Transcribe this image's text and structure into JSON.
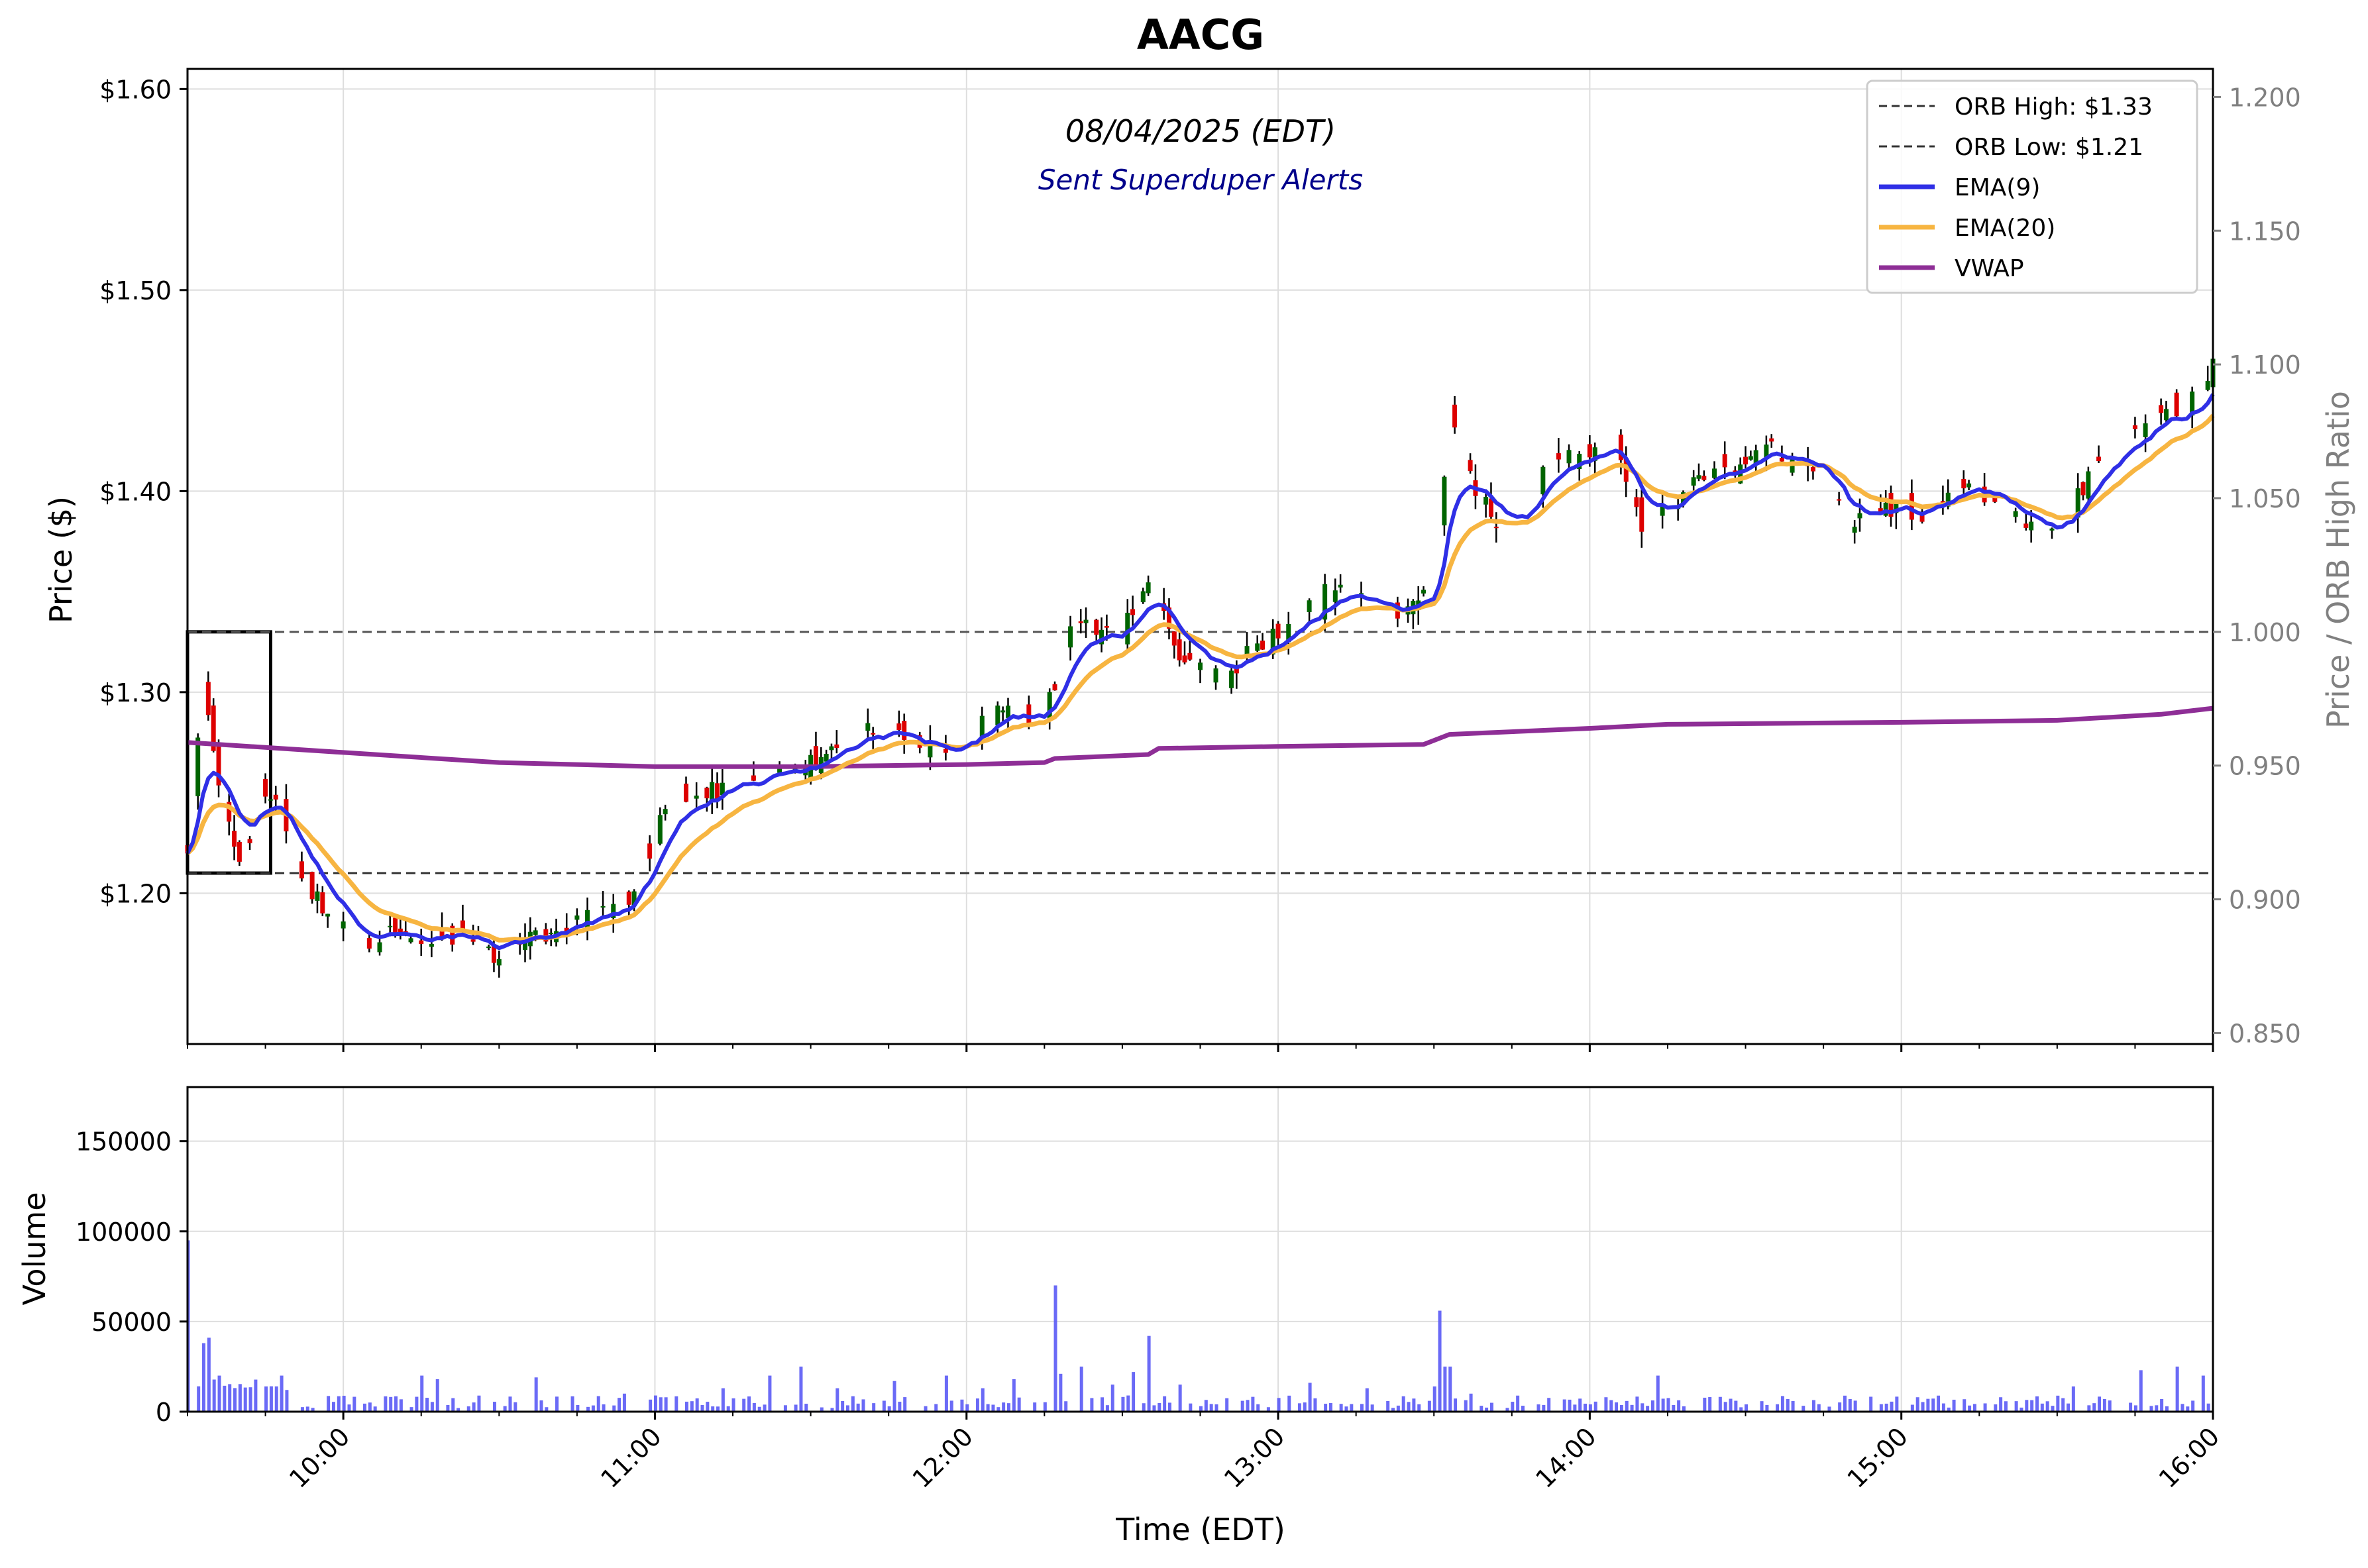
{
  "chart_data": {
    "type": "candlestick",
    "title": "AACG",
    "date_label": "08/04/2025 (EDT)",
    "alerts_label": "Sent Superduper Alerts",
    "xlabel": "Time (EDT)",
    "ylabel_price": "Price ($)",
    "ylabel_ratio": "Price / ORB High Ratio",
    "ylabel_volume": "Volume",
    "x_range": [
      "09:30",
      "16:00"
    ],
    "price_ylim": [
      1.125,
      1.61
    ],
    "ratio_ylim": [
      0.8459,
      1.2105
    ],
    "volume_ylim": [
      0,
      180000
    ],
    "grid": true,
    "legend_placement": "top-right",
    "x_ticks": [
      "10:00",
      "11:00",
      "12:00",
      "13:00",
      "14:00",
      "15:00",
      "16:00"
    ],
    "price_ticks": [
      "$1.20",
      "$1.30",
      "$1.40",
      "$1.50",
      "$1.60"
    ],
    "ratio_ticks": [
      "0.850",
      "0.900",
      "0.950",
      "1.000",
      "1.050",
      "1.100",
      "1.150",
      "1.200"
    ],
    "volume_ticks": [
      "0",
      "50000",
      "100000",
      "150000"
    ],
    "orb_high": 1.33,
    "orb_low": 1.21,
    "orb_window": [
      "09:30",
      "09:46"
    ],
    "legend": [
      {
        "label": "ORB High: $1.33",
        "color": "#333333",
        "style": "dashed"
      },
      {
        "label": "ORB Low: $1.21",
        "color": "#333333",
        "style": "dashed"
      },
      {
        "label": "EMA(9)",
        "color": "#2f2fe6",
        "style": "solid"
      },
      {
        "label": "EMA(20)",
        "color": "#f7b541",
        "style": "solid"
      },
      {
        "label": "VWAP",
        "color": "#8e2e96",
        "style": "solid"
      }
    ],
    "colors": {
      "up": "#006400",
      "down": "#dd0000",
      "volume": "#5a5af5",
      "ema9": "#2f2fe6",
      "ema20": "#f7b541",
      "vwap": "#8e2e96"
    },
    "price_path": [
      [
        "09:30",
        1.22
      ],
      [
        "09:33",
        1.3
      ],
      [
        "09:36",
        1.25
      ],
      [
        "09:40",
        1.21
      ],
      [
        "09:44",
        1.25
      ],
      [
        "09:48",
        1.24
      ],
      [
        "09:52",
        1.21
      ],
      [
        "09:56",
        1.19
      ],
      [
        "10:00",
        1.18
      ],
      [
        "10:05",
        1.17
      ],
      [
        "10:10",
        1.18
      ],
      [
        "10:15",
        1.175
      ],
      [
        "10:20",
        1.18
      ],
      [
        "10:25",
        1.175
      ],
      [
        "10:30",
        1.17
      ],
      [
        "10:35",
        1.18
      ],
      [
        "10:40",
        1.175
      ],
      [
        "10:45",
        1.19
      ],
      [
        "10:50",
        1.19
      ],
      [
        "10:55",
        1.195
      ],
      [
        "11:00",
        1.23
      ],
      [
        "11:05",
        1.25
      ],
      [
        "11:10",
        1.25
      ],
      [
        "11:15",
        1.255
      ],
      [
        "11:20",
        1.255
      ],
      [
        "11:25",
        1.265
      ],
      [
        "11:30",
        1.265
      ],
      [
        "11:35",
        1.27
      ],
      [
        "11:40",
        1.28
      ],
      [
        "11:45",
        1.28
      ],
      [
        "11:50",
        1.275
      ],
      [
        "11:55",
        1.27
      ],
      [
        "12:00",
        1.275
      ],
      [
        "12:05",
        1.29
      ],
      [
        "12:10",
        1.29
      ],
      [
        "12:15",
        1.29
      ],
      [
        "12:20",
        1.33
      ],
      [
        "12:25",
        1.33
      ],
      [
        "12:30",
        1.33
      ],
      [
        "12:35",
        1.36
      ],
      [
        "12:40",
        1.32
      ],
      [
        "12:45",
        1.31
      ],
      [
        "12:50",
        1.31
      ],
      [
        "12:55",
        1.32
      ],
      [
        "13:00",
        1.33
      ],
      [
        "13:05",
        1.34
      ],
      [
        "13:10",
        1.35
      ],
      [
        "13:15",
        1.35
      ],
      [
        "13:20",
        1.34
      ],
      [
        "13:25",
        1.34
      ],
      [
        "13:30",
        1.35
      ],
      [
        "13:33",
        1.44
      ],
      [
        "13:38",
        1.4
      ],
      [
        "13:43",
        1.38
      ],
      [
        "13:48",
        1.39
      ],
      [
        "13:53",
        1.42
      ],
      [
        "14:00",
        1.42
      ],
      [
        "14:05",
        1.42
      ],
      [
        "14:10",
        1.38
      ],
      [
        "14:15",
        1.39
      ],
      [
        "14:20",
        1.41
      ],
      [
        "14:25",
        1.41
      ],
      [
        "14:30",
        1.415
      ],
      [
        "14:35",
        1.42
      ],
      [
        "14:40",
        1.41
      ],
      [
        "14:45",
        1.41
      ],
      [
        "14:50",
        1.38
      ],
      [
        "14:55",
        1.39
      ],
      [
        "15:00",
        1.39
      ],
      [
        "15:05",
        1.39
      ],
      [
        "15:10",
        1.4
      ],
      [
        "15:15",
        1.4
      ],
      [
        "15:20",
        1.39
      ],
      [
        "15:25",
        1.38
      ],
      [
        "15:30",
        1.38
      ],
      [
        "15:35",
        1.4
      ],
      [
        "15:40",
        1.42
      ],
      [
        "15:45",
        1.43
      ],
      [
        "15:50",
        1.44
      ],
      [
        "15:55",
        1.44
      ],
      [
        "16:00",
        1.46
      ]
    ],
    "vwap_path": [
      [
        "09:30",
        1.275
      ],
      [
        "10:00",
        1.27
      ],
      [
        "10:30",
        1.265
      ],
      [
        "11:00",
        1.263
      ],
      [
        "11:30",
        1.263
      ],
      [
        "12:00",
        1.264
      ],
      [
        "12:15",
        1.265
      ],
      [
        "12:17",
        1.267
      ],
      [
        "12:35",
        1.269
      ],
      [
        "12:37",
        1.272
      ],
      [
        "13:00",
        1.273
      ],
      [
        "13:28",
        1.274
      ],
      [
        "13:33",
        1.279
      ],
      [
        "14:00",
        1.282
      ],
      [
        "14:15",
        1.284
      ],
      [
        "15:00",
        1.285
      ],
      [
        "15:30",
        1.286
      ],
      [
        "15:50",
        1.289
      ],
      [
        "16:00",
        1.292
      ]
    ],
    "volume_spikes": [
      [
        "09:30",
        95000
      ],
      [
        "09:33",
        38000
      ],
      [
        "09:34",
        41000
      ],
      [
        "09:36",
        20000
      ],
      [
        "09:45",
        14000
      ],
      [
        "09:48",
        20000
      ],
      [
        "10:15",
        20000
      ],
      [
        "10:18",
        18000
      ],
      [
        "10:37",
        19000
      ],
      [
        "10:54",
        10000
      ],
      [
        "11:13",
        13000
      ],
      [
        "11:22",
        20000
      ],
      [
        "11:28",
        25000
      ],
      [
        "11:35",
        13000
      ],
      [
        "11:46",
        17000
      ],
      [
        "11:56",
        20000
      ],
      [
        "12:03",
        13000
      ],
      [
        "12:09",
        18000
      ],
      [
        "12:17",
        70000
      ],
      [
        "12:18",
        21000
      ],
      [
        "12:22",
        25000
      ],
      [
        "12:28",
        15000
      ],
      [
        "12:32",
        22000
      ],
      [
        "12:35",
        42000
      ],
      [
        "12:41",
        15000
      ],
      [
        "13:06",
        16000
      ],
      [
        "13:17",
        13000
      ],
      [
        "13:30",
        14000
      ],
      [
        "13:31",
        56000
      ],
      [
        "13:32",
        25000
      ],
      [
        "13:33",
        25000
      ],
      [
        "13:37",
        10000
      ],
      [
        "14:03",
        8000
      ],
      [
        "14:13",
        20000
      ],
      [
        "14:38",
        7000
      ],
      [
        "14:50",
        7000
      ],
      [
        "15:03",
        8000
      ],
      [
        "15:19",
        8000
      ],
      [
        "15:33",
        14000
      ],
      [
        "15:46",
        23000
      ],
      [
        "15:50",
        7000
      ],
      [
        "15:53",
        25000
      ],
      [
        "15:58",
        20000
      ]
    ],
    "volume_baseline": [
      2000,
      9000
    ]
  }
}
